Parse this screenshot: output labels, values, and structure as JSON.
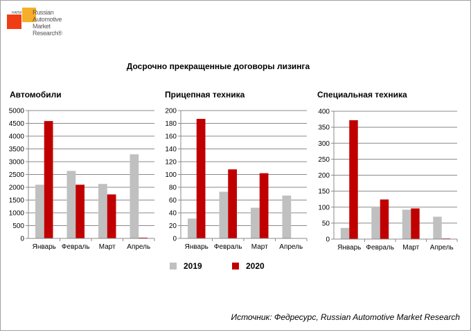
{
  "logo": {
    "tag": "НАПИ",
    "lines": [
      "Russian",
      "Automotive",
      "Market",
      "Research®"
    ]
  },
  "title": "Досрочно прекращенные договоры лизинга",
  "legend": [
    {
      "name": "2019",
      "color": "#c0c0c0"
    },
    {
      "name": "2020",
      "color": "#c00000"
    }
  ],
  "source": "Источник: Федресурс, Russian Automotive Market Research",
  "chart_data": [
    {
      "type": "bar",
      "title": "Автомобили",
      "categories": [
        "Январь",
        "Февраль",
        "Март",
        "Апрель"
      ],
      "ylim": [
        0,
        5000
      ],
      "ystep": 500,
      "grid": true,
      "series": [
        {
          "name": "2019",
          "values": [
            2100,
            2640,
            2130,
            3290
          ]
        },
        {
          "name": "2020",
          "values": [
            4590,
            2100,
            1720,
            30
          ]
        }
      ]
    },
    {
      "type": "bar",
      "title": "Прицепная техника",
      "categories": [
        "Январь",
        "Февраль",
        "Март",
        "Апрель"
      ],
      "ylim": [
        0,
        200
      ],
      "ystep": 20,
      "grid": true,
      "series": [
        {
          "name": "2019",
          "values": [
            31,
            73,
            48,
            67
          ]
        },
        {
          "name": "2020",
          "values": [
            187,
            108,
            102,
            0
          ]
        }
      ]
    },
    {
      "type": "bar",
      "title": "Специальная техника",
      "categories": [
        "Январь",
        "Февраль",
        "Март",
        "Апрель"
      ],
      "ylim": [
        0,
        400
      ],
      "ystep": 50,
      "grid": true,
      "series": [
        {
          "name": "2019",
          "values": [
            35,
            102,
            92,
            70
          ]
        },
        {
          "name": "2020",
          "values": [
            372,
            124,
            96,
            2
          ]
        }
      ]
    }
  ]
}
